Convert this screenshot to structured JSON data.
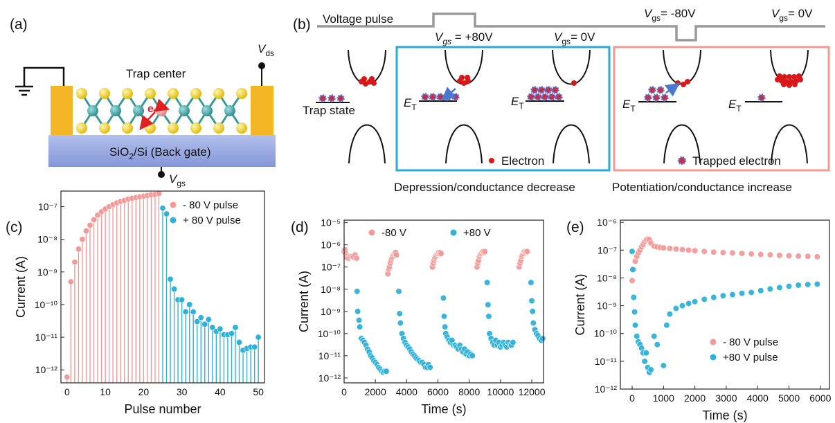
{
  "panel_a": {
    "label": "(a)",
    "trap_center": "Trap center",
    "electron": "e",
    "substrate": {
      "main": "SiO",
      "sub": "2",
      "rest": "/Si (Back gate)"
    },
    "vds": {
      "symbol": "V",
      "sub": "ds"
    },
    "vgs": {
      "symbol": "V",
      "sub": "gs"
    }
  },
  "panel_b": {
    "label": "(b)",
    "voltage_pulse": "Voltage pulse",
    "pulses": [
      {
        "symbol": "V",
        "sub": "gs",
        "value": " = +80V"
      },
      {
        "symbol": "V",
        "sub": "gs",
        "value": "= 0V"
      },
      {
        "symbol": "V",
        "sub": "gs",
        "value": "= -80V"
      },
      {
        "symbol": "V",
        "sub": "gs",
        "value": "= 0V"
      }
    ],
    "trap_state": "Trap state",
    "level": {
      "symbol": "E",
      "sub": "T"
    },
    "electron": "Electron",
    "trapped_electron": "Trapped electron",
    "depression": "Depression/conductance decrease",
    "potentiation": "Potentiation/conductance increase"
  },
  "chart_data": [
    {
      "type": "stem",
      "panel_label": "(c)",
      "xlabel": "Pulse number",
      "ylabel": "Current (A)",
      "yscale": "log",
      "legend": "upper right",
      "xlim": [
        -1.6,
        51.6
      ],
      "xticks": [
        0,
        10,
        20,
        30,
        40,
        50
      ],
      "ylim": [
        4e-13,
        3e-07
      ],
      "yticks": [
        {
          "value": 1e-12,
          "label": "10⁻¹²"
        },
        {
          "value": 1e-11,
          "label": "10⁻¹¹"
        },
        {
          "value": 1e-10,
          "label": "10⁻¹⁰"
        },
        {
          "value": 1e-09,
          "label": "10⁻⁹"
        },
        {
          "value": 1e-08,
          "label": "10⁻⁸"
        },
        {
          "value": 1e-07,
          "label": "10⁻⁷"
        }
      ],
      "series": [
        {
          "name": "- 80 V pulse",
          "color": "#f29a98",
          "x": [
            0,
            1,
            2,
            3,
            4,
            5,
            6,
            7,
            8,
            9,
            10,
            11,
            12,
            13,
            14,
            15,
            16,
            17,
            18,
            19,
            20,
            21,
            22,
            23,
            24
          ],
          "values": [
            6e-13,
            5e-10,
            2e-09,
            5e-09,
            1e-08,
            1.8e-08,
            2.7e-08,
            4e-08,
            5.5e-08,
            7e-08,
            8.5e-08,
            1e-07,
            1.15e-07,
            1.3e-07,
            1.45e-07,
            1.55e-07,
            1.7e-07,
            1.8e-07,
            1.9e-07,
            2e-07,
            2.1e-07,
            2.2e-07,
            2.3e-07,
            2.35e-07,
            2.5e-07
          ]
        },
        {
          "name": "+ 80 V pulse",
          "color": "#2fb2d8",
          "x": [
            25,
            26,
            27,
            28,
            29,
            30,
            31,
            32,
            33,
            34,
            35,
            36,
            37,
            38,
            39,
            40,
            41,
            42,
            43,
            44,
            45,
            46,
            47,
            48,
            49,
            50
          ],
          "values": [
            9e-08,
            6e-08,
            6e-10,
            3e-10,
            1.4e-10,
            1.4e-10,
            6e-11,
            1e-10,
            6e-11,
            3e-11,
            4e-11,
            2.5e-11,
            3.5e-11,
            2e-11,
            1.5e-11,
            1.8e-11,
            1.2e-11,
            1.2e-11,
            1.3e-11,
            2e-11,
            7e-12,
            4e-12,
            4.5e-12,
            5e-12,
            5e-12,
            1e-11
          ]
        }
      ]
    },
    {
      "type": "scatter",
      "panel_label": "(d)",
      "xlabel": "Time (s)",
      "ylabel": "Current (A)",
      "yscale": "log",
      "legend": "upper center",
      "xlim": [
        0,
        12750
      ],
      "xticks": [
        0,
        2000,
        4000,
        6000,
        8000,
        10000,
        12000
      ],
      "ylim": [
        6e-13,
        1.3e-05
      ],
      "yticks": [
        {
          "value": 1e-12,
          "label": "10⁻¹²"
        },
        {
          "value": 1e-11,
          "label": "10⁻¹¹"
        },
        {
          "value": 1e-10,
          "label": "10⁻¹⁰"
        },
        {
          "value": 1e-09,
          "label": "10⁻⁹"
        },
        {
          "value": 1e-08,
          "label": "10⁻⁸"
        },
        {
          "value": 1e-07,
          "label": "10⁻⁷"
        },
        {
          "value": 1e-06,
          "label": "10⁻⁶"
        },
        {
          "value": 1e-05,
          "label": "10⁻⁵"
        }
      ],
      "series": [
        {
          "name": "-80 V",
          "color": "#f29a98",
          "x": [
            0,
            50,
            100,
            150,
            200,
            300,
            400,
            500,
            600,
            700,
            800,
            2800,
            2850,
            2900,
            2950,
            3000,
            3050,
            3100,
            3150,
            3200,
            3250,
            3300,
            3350,
            5650,
            5700,
            5750,
            5800,
            5850,
            5900,
            5950,
            6000,
            6050,
            6100,
            6150,
            6200,
            8500,
            8550,
            8600,
            8650,
            8700,
            8750,
            8800,
            8850,
            8900,
            8950,
            9000,
            11200,
            11250,
            11300,
            11350,
            11400,
            11450,
            11500,
            11550,
            11600,
            11650,
            11700
          ],
          "values": [
            5e-07,
            6e-07,
            4e-07,
            3e-07,
            2.5e-07,
            2.5e-07,
            3e-07,
            3e-07,
            2.8e-07,
            3.5e-07,
            2.5e-07,
            5e-08,
            8e-08,
            1e-07,
            1.5e-07,
            2e-07,
            2.5e-07,
            3e-07,
            3.5e-07,
            4e-07,
            4e-07,
            4.5e-07,
            3.5e-07,
            1e-07,
            1.5e-07,
            2e-07,
            2.5e-07,
            3e-07,
            3.5e-07,
            4e-07,
            4e-07,
            4.5e-07,
            4e-07,
            4.5e-07,
            4e-07,
            1e-07,
            1.5e-07,
            2e-07,
            3e-07,
            3.5e-07,
            4e-07,
            4.5e-07,
            5e-07,
            5e-07,
            4.5e-07,
            5e-07,
            1e-07,
            1.5e-07,
            2e-07,
            3e-07,
            3.5e-07,
            4e-07,
            5e-07,
            5e-07,
            4.5e-07,
            5e-07,
            5e-07
          ]
        },
        {
          "name": "+80 V",
          "color": "#2fb2d8",
          "x": [
            830,
            870,
            950,
            1000,
            1100,
            1200,
            1300,
            1400,
            1500,
            1600,
            1700,
            1800,
            1900,
            2000,
            2100,
            2200,
            2300,
            2400,
            2500,
            2600,
            2700,
            3500,
            3550,
            3600,
            3700,
            3800,
            3900,
            4000,
            4100,
            4200,
            4300,
            4400,
            4500,
            4600,
            4700,
            4800,
            4900,
            5000,
            5100,
            5200,
            5300,
            5400,
            5500,
            6350,
            6400,
            6450,
            6500,
            6600,
            6700,
            6800,
            6900,
            7000,
            7100,
            7200,
            7300,
            7400,
            7500,
            7600,
            7700,
            7800,
            7900,
            8000,
            8100,
            8200,
            9150,
            9200,
            9250,
            9300,
            9400,
            9500,
            9600,
            9700,
            9800,
            9900,
            10000,
            10100,
            10200,
            10300,
            10400,
            10500,
            10600,
            10700,
            10800,
            11950,
            12000,
            12050,
            12100,
            12200,
            12300,
            12400,
            12500,
            12600,
            12700
          ],
          "values": [
            8e-09,
            1e-09,
            4e-10,
            2e-10,
            6e-11,
            5e-11,
            4e-11,
            3e-11,
            2e-11,
            1.5e-11,
            1e-11,
            8e-12,
            6e-12,
            5e-12,
            4e-12,
            3e-12,
            2.5e-12,
            2e-12,
            1.8e-12,
            2e-12,
            2e-12,
            8e-09,
            8e-10,
            3e-10,
            1e-10,
            6e-11,
            4e-11,
            3e-11,
            2.5e-11,
            2e-11,
            1.5e-11,
            1.2e-11,
            1e-11,
            8e-12,
            7e-12,
            6e-12,
            5e-12,
            5e-12,
            4e-12,
            3e-12,
            3e-12,
            4e-12,
            3e-12,
            4e-09,
            6e-10,
            2e-10,
            1e-10,
            7e-11,
            5e-11,
            4e-11,
            5e-11,
            3e-11,
            3e-11,
            2.5e-11,
            2e-11,
            3e-11,
            2e-11,
            1.5e-11,
            2e-11,
            1.2e-11,
            1.5e-11,
            1e-11,
            1.2e-11,
            1e-11,
            2e-08,
            2e-09,
            6e-10,
            1e-10,
            6e-11,
            4e-11,
            3e-11,
            5e-11,
            3e-11,
            4e-11,
            2.5e-11,
            3e-11,
            4e-11,
            3e-11,
            2.5e-11,
            4e-11,
            3e-11,
            3e-11,
            4e-11,
            2e-08,
            3e-09,
            1e-09,
            3e-10,
            1.5e-10,
            1e-10,
            8e-11,
            6e-11,
            5e-11,
            6e-11
          ]
        }
      ]
    },
    {
      "type": "scatter",
      "panel_label": "(e)",
      "xlabel": "Time (s)",
      "ylabel": "Current (A)",
      "yscale": "log",
      "legend": "lower right",
      "xlim": [
        -375,
        6290
      ],
      "xticks": [
        0,
        1000,
        2000,
        3000,
        4000,
        5000,
        6000
      ],
      "ylim": [
        1e-12,
        1.2e-06
      ],
      "yticks": [
        {
          "value": 1e-12,
          "label": "10⁻¹²"
        },
        {
          "value": 1e-11,
          "label": "10⁻¹¹"
        },
        {
          "value": 1e-10,
          "label": "10⁻¹⁰"
        },
        {
          "value": 1e-09,
          "label": "10⁻⁹"
        },
        {
          "value": 1e-08,
          "label": "10⁻⁸"
        },
        {
          "value": 1e-07,
          "label": "10⁻⁷"
        },
        {
          "value": 1e-06,
          "label": "10⁻⁶"
        }
      ],
      "series": [
        {
          "name": "- 80 V pulse",
          "color": "#f29a98",
          "x": [
            0,
            50,
            100,
            150,
            200,
            250,
            300,
            350,
            400,
            450,
            500,
            550,
            600,
            700,
            800,
            900,
            1000,
            1200,
            1400,
            1600,
            1800,
            2000,
            2300,
            2600,
            2900,
            3200,
            3500,
            3800,
            4100,
            4400,
            4700,
            5000,
            5300,
            5600,
            5900
          ],
          "values": [
            8e-09,
            2e-08,
            4e-08,
            6e-08,
            8e-08,
            1e-07,
            1.3e-07,
            1.6e-07,
            2e-07,
            2.3e-07,
            2.5e-07,
            2.4e-07,
            1.8e-07,
            1.4e-07,
            1.3e-07,
            1.25e-07,
            1.2e-07,
            1.15e-07,
            1.1e-07,
            1.05e-07,
            1e-07,
            9.5e-08,
            9e-08,
            8.5e-08,
            8.2e-08,
            8e-08,
            7.6e-08,
            7.3e-08,
            7e-08,
            6.8e-08,
            6.5e-08,
            6.3e-08,
            6.1e-08,
            6e-08,
            5.8e-08
          ]
        },
        {
          "name": "+80 V pulse",
          "color": "#2fb2d8",
          "x": [
            0,
            20,
            50,
            80,
            100,
            150,
            200,
            250,
            300,
            350,
            400,
            450,
            500,
            550,
            600,
            700,
            800,
            1000,
            1100,
            1200,
            1400,
            1600,
            1800,
            2000,
            2300,
            2600,
            2900,
            3200,
            3500,
            3800,
            4100,
            4400,
            4700,
            5000,
            5300,
            5600,
            5900
          ],
          "values": [
            9e-08,
            2e-08,
            2e-09,
            6e-10,
            2e-10,
            8e-11,
            5e-11,
            4e-11,
            3e-11,
            2e-11,
            1e-11,
            2e-11,
            6e-12,
            4e-12,
            5e-12,
            8e-11,
            4e-11,
            7e-12,
            2e-10,
            5e-10,
            8e-10,
            1e-09,
            1.2e-09,
            1.4e-09,
            1.7e-09,
            2e-09,
            2.3e-09,
            2.5e-09,
            2.8e-09,
            3e-09,
            3.5e-09,
            4e-09,
            4.5e-09,
            5e-09,
            5.5e-09,
            5.8e-09,
            6e-09
          ]
        }
      ]
    }
  ]
}
